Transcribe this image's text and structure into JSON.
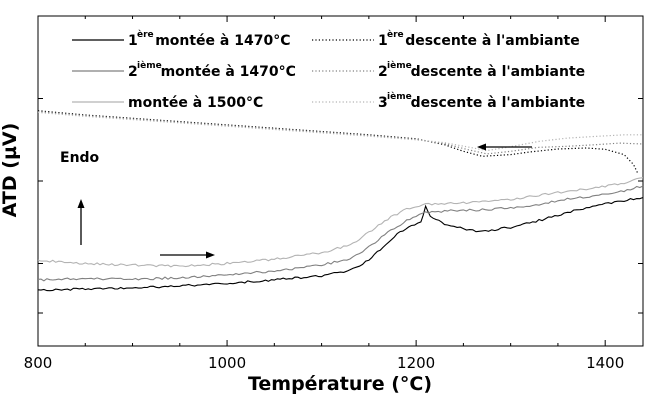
{
  "chart_data": {
    "type": "line",
    "xlabel": "Température (°C)",
    "ylabel": "ATD (µV)",
    "xlim": [
      800,
      1440
    ],
    "x_ticks": [
      800,
      1000,
      1200,
      1400
    ],
    "ylim": [
      0,
      100
    ],
    "y_tick_values": [
      10,
      25,
      50,
      75,
      100
    ],
    "y_tick_labels_shown": false,
    "grid": false,
    "legend_position": "top",
    "annotations": [
      "Endo"
    ],
    "series": [
      {
        "name": "1ère montée à 1470°C",
        "legend_prefix": "1",
        "legend_sup": "ère",
        "legend_suffix": " montée à 1470°C",
        "color": "#000000",
        "dash": "solid",
        "points": [
          [
            800,
            17
          ],
          [
            850,
            17.3
          ],
          [
            900,
            17.6
          ],
          [
            950,
            18.2
          ],
          [
            1000,
            19
          ],
          [
            1050,
            20
          ],
          [
            1100,
            21.3
          ],
          [
            1130,
            23
          ],
          [
            1150,
            26
          ],
          [
            1165,
            30
          ],
          [
            1180,
            34
          ],
          [
            1195,
            36.2
          ],
          [
            1205,
            37.5
          ],
          [
            1210,
            42.2
          ],
          [
            1215,
            39
          ],
          [
            1230,
            37
          ],
          [
            1260,
            35
          ],
          [
            1270,
            34.7
          ],
          [
            1300,
            36
          ],
          [
            1330,
            38
          ],
          [
            1360,
            40.5
          ],
          [
            1390,
            42.5
          ],
          [
            1420,
            44
          ],
          [
            1440,
            45
          ]
        ]
      },
      {
        "name": "2ième montée à 1470°C",
        "legend_prefix": "2",
        "legend_sup": "ième",
        "legend_suffix": " montée à 1470°C",
        "color": "#808080",
        "dash": "solid",
        "points": [
          [
            800,
            20
          ],
          [
            850,
            20.4
          ],
          [
            900,
            20.2
          ],
          [
            950,
            20.7
          ],
          [
            1000,
            21.6
          ],
          [
            1050,
            22.7
          ],
          [
            1100,
            24.5
          ],
          [
            1130,
            26.5
          ],
          [
            1150,
            30
          ],
          [
            1170,
            34.5
          ],
          [
            1190,
            38
          ],
          [
            1210,
            40.5
          ],
          [
            1240,
            41
          ],
          [
            1270,
            41.3
          ],
          [
            1300,
            41.8
          ],
          [
            1330,
            43
          ],
          [
            1360,
            44.5
          ],
          [
            1390,
            45.6
          ],
          [
            1420,
            47
          ],
          [
            1440,
            48.5
          ]
        ]
      },
      {
        "name": "montée à 1500°C",
        "legend_prefix": "",
        "legend_sup": "",
        "legend_suffix": "montée à 1500°C",
        "color": "#b3b3b3",
        "dash": "solid",
        "points": [
          [
            800,
            26
          ],
          [
            850,
            25
          ],
          [
            900,
            24.5
          ],
          [
            950,
            24.2
          ],
          [
            1000,
            25
          ],
          [
            1050,
            26.3
          ],
          [
            1100,
            28.3
          ],
          [
            1130,
            30.5
          ],
          [
            1150,
            34.5
          ],
          [
            1170,
            38.5
          ],
          [
            1190,
            41.5
          ],
          [
            1210,
            43
          ],
          [
            1240,
            43.3
          ],
          [
            1270,
            43.6
          ],
          [
            1300,
            44.5
          ],
          [
            1330,
            45.6
          ],
          [
            1360,
            47
          ],
          [
            1390,
            48
          ],
          [
            1420,
            49.5
          ],
          [
            1440,
            51
          ]
        ]
      },
      {
        "name": "1ère descente à l'ambiante",
        "legend_prefix": "1",
        "legend_sup": "ère",
        "legend_suffix": " descente à l'ambiante",
        "color": "#000000",
        "dash": "dot",
        "points": [
          [
            800,
            71.3
          ],
          [
            850,
            70
          ],
          [
            900,
            69
          ],
          [
            950,
            68
          ],
          [
            1000,
            67
          ],
          [
            1050,
            66
          ],
          [
            1100,
            65
          ],
          [
            1150,
            64
          ],
          [
            1200,
            62.8
          ],
          [
            1230,
            61
          ],
          [
            1250,
            59
          ],
          [
            1270,
            57.5
          ],
          [
            1300,
            58
          ],
          [
            1320,
            58.8
          ],
          [
            1350,
            59.7
          ],
          [
            1380,
            60
          ],
          [
            1400,
            59.6
          ],
          [
            1420,
            58
          ],
          [
            1430,
            55
          ],
          [
            1435,
            52
          ]
        ]
      },
      {
        "name": "2ième descente à l'ambiante",
        "legend_prefix": "2",
        "legend_sup": "ième",
        "legend_suffix": " descente à l'ambiante",
        "color": "#808080",
        "dash": "dot",
        "points": [
          [
            800,
            71
          ],
          [
            850,
            69.8
          ],
          [
            900,
            68.8
          ],
          [
            950,
            67.8
          ],
          [
            1000,
            66.8
          ],
          [
            1050,
            65.8
          ],
          [
            1100,
            64.8
          ],
          [
            1150,
            63.8
          ],
          [
            1200,
            62.6
          ],
          [
            1230,
            61.3
          ],
          [
            1255,
            59.5
          ],
          [
            1275,
            58.2
          ],
          [
            1300,
            59
          ],
          [
            1330,
            60.2
          ],
          [
            1360,
            60.5
          ],
          [
            1390,
            61
          ],
          [
            1415,
            61.5
          ],
          [
            1440,
            61.2
          ]
        ]
      },
      {
        "name": "3ième descente à l'ambiante",
        "legend_prefix": "3",
        "legend_sup": "ième",
        "legend_suffix": " descente à l'ambiante",
        "color": "#b3b3b3",
        "dash": "dot",
        "points": [
          [
            800,
            70.8
          ],
          [
            850,
            69.6
          ],
          [
            900,
            68.6
          ],
          [
            950,
            67.6
          ],
          [
            1000,
            66.6
          ],
          [
            1050,
            65.6
          ],
          [
            1100,
            64.6
          ],
          [
            1150,
            63.6
          ],
          [
            1200,
            62.5
          ],
          [
            1230,
            61.6
          ],
          [
            1255,
            60.3
          ],
          [
            1275,
            59.2
          ],
          [
            1300,
            60.4
          ],
          [
            1330,
            62
          ],
          [
            1360,
            63
          ],
          [
            1390,
            63.5
          ],
          [
            1420,
            64
          ],
          [
            1440,
            64
          ]
        ]
      }
    ]
  }
}
